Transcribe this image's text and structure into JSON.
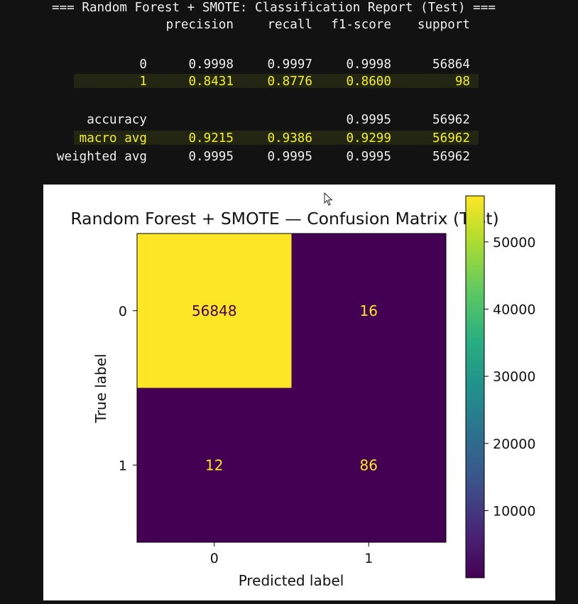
{
  "report": {
    "title_line": "=== Random Forest + SMOTE: Classification Report (Test) ===",
    "headers": [
      "precision",
      "recall",
      "f1-score",
      "support"
    ],
    "rows": [
      {
        "label": "0",
        "precision": "0.9998",
        "recall": "0.9997",
        "f1": "0.9998",
        "support": "56864",
        "highlight": false
      },
      {
        "label": "1",
        "precision": "0.8431",
        "recall": "0.8776",
        "f1": "0.8600",
        "support": "98",
        "highlight": true
      },
      {
        "label": "accuracy",
        "precision": "",
        "recall": "",
        "f1": "0.9995",
        "support": "56962",
        "highlight": false
      },
      {
        "label": "macro avg",
        "precision": "0.9215",
        "recall": "0.9386",
        "f1": "0.9299",
        "support": "56962",
        "highlight": true
      },
      {
        "label": "weighted avg",
        "precision": "0.9995",
        "recall": "0.9995",
        "f1": "0.9995",
        "support": "56962",
        "highlight": false
      }
    ]
  },
  "chart_data": {
    "type": "heatmap",
    "title": "Random Forest + SMOTE — Confusion Matrix (Test)",
    "xlabel": "Predicted label",
    "ylabel": "True label",
    "x_categories": [
      "0",
      "1"
    ],
    "y_categories": [
      "0",
      "1"
    ],
    "values": [
      [
        56848,
        16
      ],
      [
        12,
        86
      ]
    ],
    "colormap": "viridis",
    "colorbar": {
      "ticks": [
        10000,
        20000,
        30000,
        40000,
        50000
      ],
      "range": [
        12,
        56848
      ]
    },
    "colors": {
      "high": "#fde725",
      "low": "#440154",
      "text_on_high": "#440154",
      "text_on_low": "#fde725"
    }
  }
}
